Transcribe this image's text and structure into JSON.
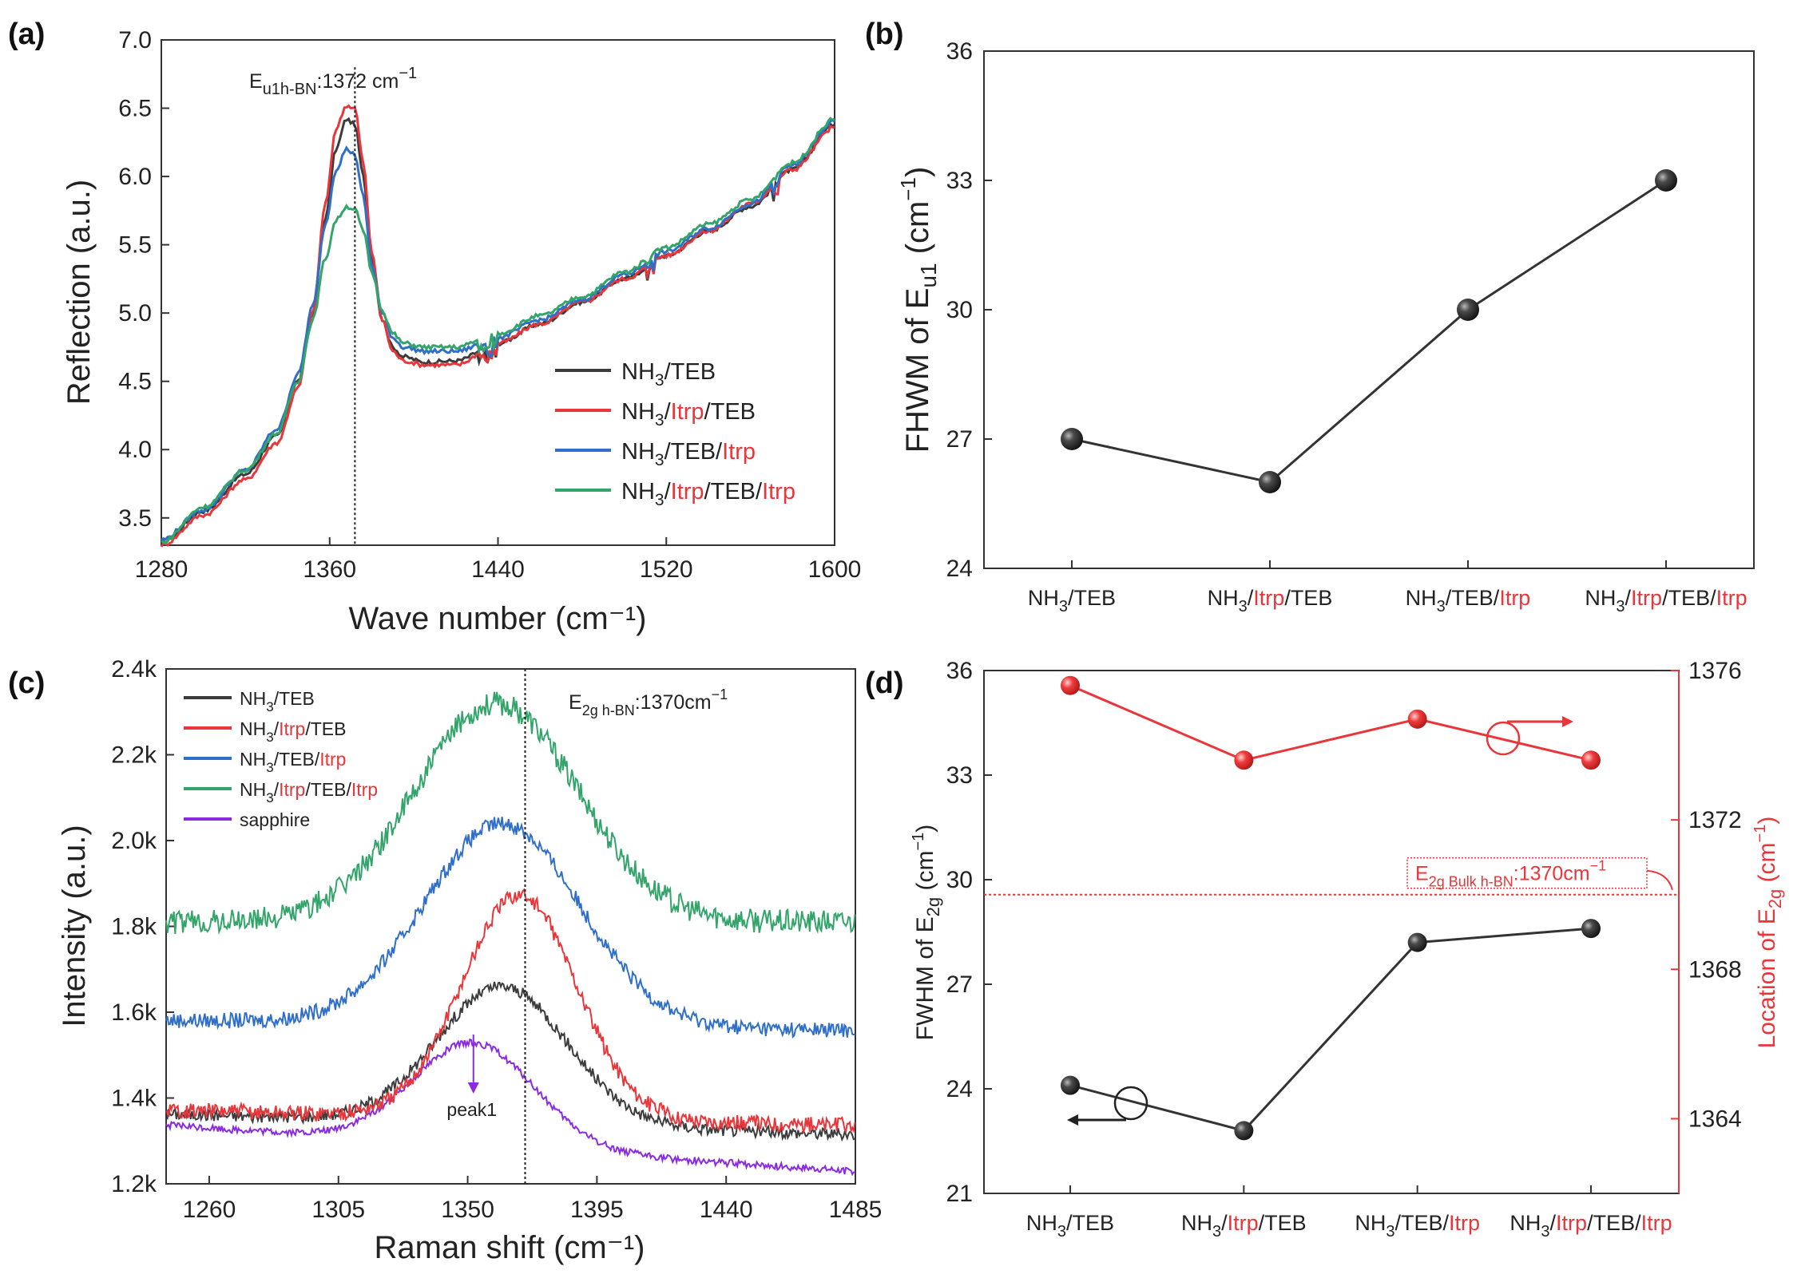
{
  "panel_labels": [
    "(a)",
    "(b)",
    "(c)",
    "(d)"
  ],
  "samples": {
    "s1": [
      "NH",
      "3",
      "/TEB"
    ],
    "s2": [
      "NH",
      "3",
      "/",
      "Itrp",
      "/TEB"
    ],
    "s3": [
      "NH",
      "3",
      "/TEB/",
      "Itrp"
    ],
    "s4": [
      "NH",
      "3",
      "/",
      "Itrp",
      "/TEB/",
      "Itrp"
    ],
    "s5": [
      "sapphire"
    ]
  },
  "colors": {
    "s1": "#3c3c3c",
    "s2": "#e8363a",
    "s3": "#2f6fc9",
    "s4": "#34a56a",
    "s5": "#8a2be2",
    "accent": "#e8363a"
  },
  "chart_data": [
    {
      "id": "a",
      "type": "line",
      "xlabel": "Wave number (cm⁻¹)",
      "ylabel": "Reflection (a.u.)",
      "xlim": [
        1280,
        1600
      ],
      "ylim": [
        3.3,
        7.0
      ],
      "xticks": [
        "1280",
        "1360",
        "1440",
        "1520",
        "1600"
      ],
      "yticks": [
        "3.5",
        "4.0",
        "4.5",
        "5.0",
        "5.5",
        "6.0",
        "6.5",
        "7.0"
      ],
      "annotation": {
        "main": "E",
        "sub": "u1h-BN",
        "text": ":1372 cm",
        "sup": "−1",
        "x": 1372
      },
      "series": [
        {
          "key": "s1",
          "points": [
            [
              1280,
              3.32
            ],
            [
              1300,
              3.55
            ],
            [
              1320,
              3.82
            ],
            [
              1335,
              4.1
            ],
            [
              1345,
              4.5
            ],
            [
              1352,
              5.0
            ],
            [
              1358,
              5.7
            ],
            [
              1363,
              6.2
            ],
            [
              1368,
              6.42
            ],
            [
              1372,
              6.38
            ],
            [
              1376,
              6.0
            ],
            [
              1380,
              5.4
            ],
            [
              1385,
              4.95
            ],
            [
              1390,
              4.75
            ],
            [
              1395,
              4.68
            ],
            [
              1405,
              4.64
            ],
            [
              1420,
              4.65
            ],
            [
              1440,
              4.78
            ],
            [
              1460,
              4.92
            ],
            [
              1480,
              5.08
            ],
            [
              1500,
              5.25
            ],
            [
              1520,
              5.42
            ],
            [
              1540,
              5.6
            ],
            [
              1560,
              5.78
            ],
            [
              1580,
              6.05
            ],
            [
              1600,
              6.38
            ]
          ]
        },
        {
          "key": "s2",
          "points": [
            [
              1280,
              3.3
            ],
            [
              1300,
              3.52
            ],
            [
              1320,
              3.78
            ],
            [
              1335,
              4.05
            ],
            [
              1345,
              4.45
            ],
            [
              1352,
              5.0
            ],
            [
              1358,
              5.8
            ],
            [
              1363,
              6.35
            ],
            [
              1368,
              6.52
            ],
            [
              1372,
              6.5
            ],
            [
              1376,
              6.1
            ],
            [
              1380,
              5.45
            ],
            [
              1385,
              4.95
            ],
            [
              1390,
              4.72
            ],
            [
              1395,
              4.65
            ],
            [
              1405,
              4.62
            ],
            [
              1420,
              4.62
            ],
            [
              1440,
              4.78
            ],
            [
              1460,
              4.92
            ],
            [
              1480,
              5.08
            ],
            [
              1500,
              5.25
            ],
            [
              1520,
              5.42
            ],
            [
              1540,
              5.6
            ],
            [
              1560,
              5.8
            ],
            [
              1580,
              6.05
            ],
            [
              1600,
              6.36
            ]
          ]
        },
        {
          "key": "s3",
          "points": [
            [
              1280,
              3.34
            ],
            [
              1300,
              3.56
            ],
            [
              1320,
              3.85
            ],
            [
              1335,
              4.15
            ],
            [
              1345,
              4.55
            ],
            [
              1352,
              5.05
            ],
            [
              1358,
              5.65
            ],
            [
              1363,
              6.05
            ],
            [
              1368,
              6.2
            ],
            [
              1372,
              6.16
            ],
            [
              1376,
              5.85
            ],
            [
              1380,
              5.35
            ],
            [
              1385,
              5.0
            ],
            [
              1390,
              4.82
            ],
            [
              1395,
              4.75
            ],
            [
              1405,
              4.72
            ],
            [
              1420,
              4.72
            ],
            [
              1440,
              4.82
            ],
            [
              1460,
              4.95
            ],
            [
              1480,
              5.1
            ],
            [
              1500,
              5.28
            ],
            [
              1520,
              5.45
            ],
            [
              1540,
              5.62
            ],
            [
              1560,
              5.8
            ],
            [
              1580,
              6.08
            ],
            [
              1600,
              6.4
            ]
          ]
        },
        {
          "key": "s4",
          "points": [
            [
              1280,
              3.32
            ],
            [
              1300,
              3.58
            ],
            [
              1320,
              3.85
            ],
            [
              1335,
              4.12
            ],
            [
              1345,
              4.5
            ],
            [
              1352,
              4.95
            ],
            [
              1358,
              5.4
            ],
            [
              1363,
              5.68
            ],
            [
              1368,
              5.78
            ],
            [
              1372,
              5.76
            ],
            [
              1376,
              5.6
            ],
            [
              1380,
              5.3
            ],
            [
              1385,
              5.02
            ],
            [
              1390,
              4.85
            ],
            [
              1395,
              4.78
            ],
            [
              1405,
              4.75
            ],
            [
              1420,
              4.75
            ],
            [
              1440,
              4.85
            ],
            [
              1460,
              4.98
            ],
            [
              1480,
              5.12
            ],
            [
              1500,
              5.3
            ],
            [
              1520,
              5.48
            ],
            [
              1540,
              5.65
            ],
            [
              1560,
              5.83
            ],
            [
              1580,
              6.1
            ],
            [
              1600,
              6.42
            ]
          ]
        }
      ]
    },
    {
      "id": "b",
      "type": "line",
      "ylabel": "FHWM of E",
      "ylabel_sub": "u1",
      "ylabel_unit": " (cm",
      "ylabel_sup": "−1",
      "ylabel_close": ")",
      "ylim": [
        24,
        36
      ],
      "yticks": [
        "24",
        "27",
        "30",
        "33",
        "36"
      ],
      "categories": [
        "s1",
        "s2",
        "s3",
        "s4"
      ],
      "values": [
        27,
        26,
        30,
        33
      ]
    },
    {
      "id": "c",
      "type": "line",
      "xlabel": "Raman shift (cm⁻¹)",
      "ylabel": "Intensity (a.u.)",
      "xlim": [
        1245,
        1485
      ],
      "ylim": [
        1200,
        2400
      ],
      "xticks": [
        "1260",
        "1305",
        "1350",
        "1395",
        "1440",
        "1485"
      ],
      "yticks": [
        "1.2k",
        "1.4k",
        "1.6k",
        "1.8k",
        "2.0k",
        "2.2k",
        "2.4k"
      ],
      "annotation": {
        "main": "E",
        "sub": "2g h-BN",
        "text": ":1370cm",
        "sup": "−1",
        "x": 1370
      },
      "peak_label": "peak1",
      "peak_x": 1352,
      "series": [
        {
          "key": "s1",
          "baseline": 1360,
          "amplitude": 320,
          "center": 1362,
          "width": 32,
          "slope": -0.2,
          "noise": 14
        },
        {
          "key": "s2",
          "baseline": 1370,
          "amplitude": 520,
          "center": 1368,
          "width": 28,
          "slope": -0.15,
          "noise": 18
        },
        {
          "key": "s3",
          "baseline": 1580,
          "amplitude": 470,
          "center": 1362,
          "width": 38,
          "slope": -0.1,
          "noise": 18
        },
        {
          "key": "s4",
          "baseline": 1810,
          "amplitude": 510,
          "center": 1360,
          "width": 40,
          "slope": 0.0,
          "noise": 28
        },
        {
          "key": "s5",
          "baseline": 1330,
          "amplitude": 240,
          "center": 1352,
          "width": 30,
          "slope": -0.45,
          "noise": 8
        }
      ]
    },
    {
      "id": "d",
      "type": "line",
      "ylabel": "FWHM of E",
      "ylabel_sub": "2g",
      "ylabel_unit": " (cm",
      "ylabel_sup": "−1",
      "ylabel_close": ")",
      "y2label": "Location of E",
      "y2label_sub": "2g",
      "y2label_unit": " (cm",
      "y2label_sup": "−1",
      "y2label_close": ")",
      "ylim": [
        21,
        36
      ],
      "yticks": [
        "21",
        "24",
        "27",
        "30",
        "33",
        "36"
      ],
      "y2lim": [
        1362,
        1376
      ],
      "y2ticks": [
        "1364",
        "1368",
        "1372",
        "1376"
      ],
      "categories": [
        "s1",
        "s2",
        "s3",
        "s4"
      ],
      "fwhm": [
        24.1,
        22.8,
        28.2,
        28.6
      ],
      "location": [
        1375.6,
        1373.6,
        1374.7,
        1373.6
      ],
      "reference": {
        "main": "E",
        "sub": "2g Bulk h-BN",
        "text": ":1370cm",
        "sup": "−1",
        "value": 1370
      }
    }
  ]
}
